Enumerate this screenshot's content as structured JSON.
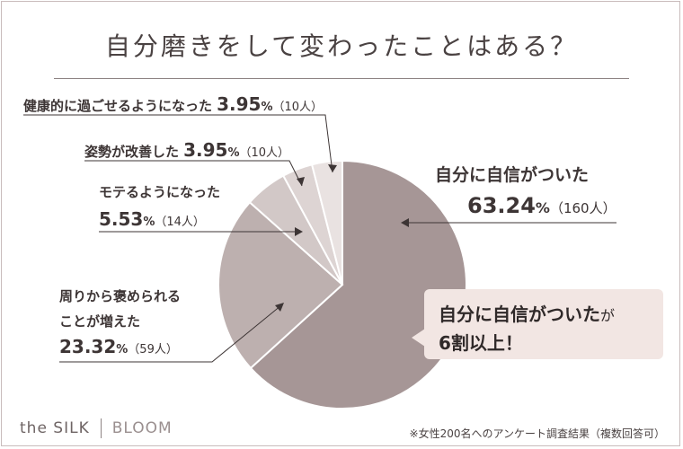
{
  "title": "自分磨きをして変わったことはある？",
  "footnote": "※女性200名へのアンケート調査結果（複数回答可）",
  "brand": {
    "part1": "the SILK",
    "part2": "BLOOM"
  },
  "callout": {
    "main": "自分に自信がついた",
    "suffix": "が",
    "line2": "6割以上！"
  },
  "colors": {
    "slice_1": "#a69696",
    "slice_2": "#bdb0af",
    "slice_3": "#d2c8c7",
    "slice_4": "#ddd4d3",
    "slice_5": "#e9e2e1",
    "callout_bg": "#f2e6e3"
  },
  "labels": [
    {
      "name": "健康的に過ごせるようになった",
      "pct": "3.95",
      "unit": "%",
      "count": "（10人）"
    },
    {
      "name": "姿勢が改善した",
      "pct": "3.95",
      "unit": "%",
      "count": "（10人）"
    },
    {
      "name": "モテるようになった",
      "pct": "5.53",
      "unit": "%",
      "count": "（14人）"
    },
    {
      "name": "周りから褒められることが増えた",
      "name_line1": "周りから褒められる",
      "name_line2": "ことが増えた",
      "pct": "23.32",
      "unit": "%",
      "count": "（59人）"
    },
    {
      "name": "自分に自信がついた",
      "pct": "63.24",
      "unit": "%",
      "count": "（160人）"
    }
  ],
  "chart_data": {
    "type": "pie",
    "title": "自分磨きをして変わったことはある？",
    "slices": [
      {
        "label": "自分に自信がついた",
        "value": 63.24,
        "count": 160
      },
      {
        "label": "周りから褒められることが増えた",
        "value": 23.32,
        "count": 59
      },
      {
        "label": "モテるようになった",
        "value": 5.53,
        "count": 14
      },
      {
        "label": "姿勢が改善した",
        "value": 3.95,
        "count": 10
      },
      {
        "label": "健康的に過ごせるようになった",
        "value": 3.95,
        "count": 10
      }
    ]
  }
}
